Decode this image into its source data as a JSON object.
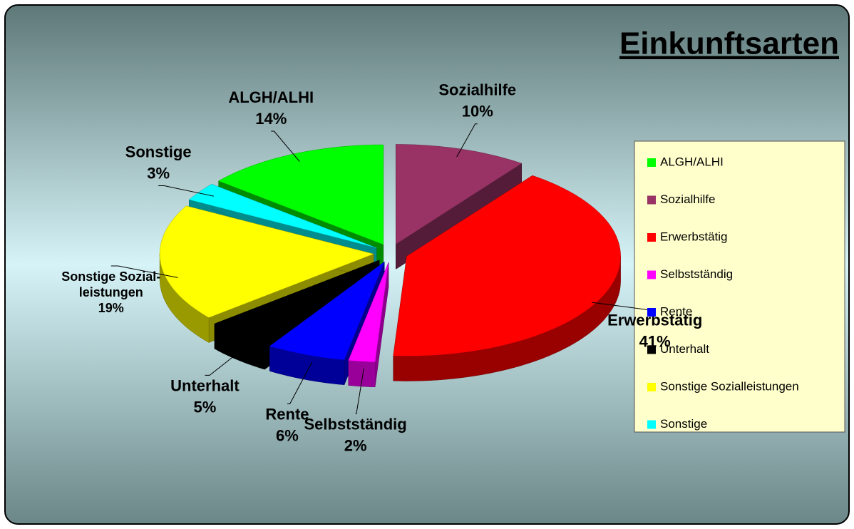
{
  "chart_data": {
    "type": "pie",
    "title": "Einkunftsarten",
    "categories": [
      "ALGH/ALHI",
      "Sozialhilfe",
      "Erwerbstätig",
      "Selbstständig",
      "Rente",
      "Unterhalt",
      "Sonstige Sozialleistungen",
      "Sonstige"
    ],
    "slice_labels": [
      [
        "ALGH/ALHI"
      ],
      [
        "Sozialhilfe"
      ],
      [
        "Erwerbstätig"
      ],
      [
        "Selbstständig"
      ],
      [
        "Rente"
      ],
      [
        "Unterhalt"
      ],
      [
        "Sonstige Sozial-",
        "leistungen"
      ],
      [
        "Sonstige"
      ]
    ],
    "values": [
      14,
      10,
      41,
      2,
      6,
      5,
      19,
      3
    ],
    "value_labels": [
      "14%",
      "10%",
      "41%",
      "2%",
      "6%",
      "5%",
      "19%",
      "3%"
    ],
    "colors": [
      "#00ff00",
      "#993366",
      "#ff0000",
      "#ff00ff",
      "#0000ff",
      "#000000",
      "#ffff00",
      "#00ffff"
    ],
    "legend": "right"
  }
}
